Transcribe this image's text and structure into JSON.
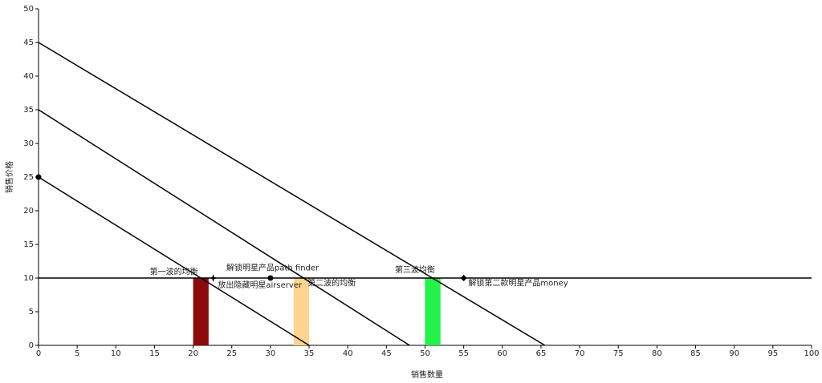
{
  "chart_data": {
    "type": "line",
    "xlabel": "销售数量",
    "ylabel": "销售价格",
    "xlim": [
      0,
      100
    ],
    "ylim": [
      0,
      50
    ],
    "xticks": [
      0,
      5,
      10,
      15,
      20,
      25,
      30,
      35,
      40,
      45,
      50,
      55,
      60,
      65,
      70,
      75,
      80,
      85,
      90,
      95,
      100
    ],
    "yticks": [
      0,
      5,
      10,
      15,
      20,
      25,
      30,
      35,
      40,
      45,
      50
    ],
    "series": [
      {
        "color": "#000000",
        "x": [
          0,
          35
        ],
        "values": [
          25,
          0
        ]
      },
      {
        "color": "#000000",
        "x": [
          0,
          48
        ],
        "values": [
          35,
          0
        ]
      },
      {
        "color": "#000000",
        "x": [
          0,
          65.5
        ],
        "values": [
          45,
          0
        ]
      },
      {
        "color": "#000000",
        "x": [
          0,
          100
        ],
        "values": [
          10,
          10
        ]
      }
    ],
    "bars": [
      {
        "x": [
          20,
          22
        ],
        "value": 10,
        "color": "#8b0a0a"
      },
      {
        "x": [
          33,
          35
        ],
        "value": 10,
        "color": "#ffd48f"
      },
      {
        "x": [
          50,
          52
        ],
        "value": 10,
        "color": "#22f24a"
      }
    ],
    "points": [
      {
        "x": 0,
        "y": 25,
        "marker": "circle"
      },
      {
        "x": 22.6,
        "y": 10,
        "marker": "star"
      },
      {
        "x": 30,
        "y": 10,
        "marker": "circle"
      },
      {
        "x": 55,
        "y": 10,
        "marker": "diamond"
      }
    ],
    "annotations": [
      {
        "text": "第一波的均衡",
        "x": 14.4,
        "y": 10.9
      },
      {
        "text": "解锁明星产品path finder",
        "x": 24.3,
        "y": 11.5
      },
      {
        "text": "放出隐藏明星airserver",
        "x": 23.2,
        "y": 8.9
      },
      {
        "text": "第二波的均衡",
        "x": 34.8,
        "y": 9.2
      },
      {
        "text": "第三波均衡",
        "x": 46.1,
        "y": 11.2
      },
      {
        "text": "解锁第二款明星产品money",
        "x": 55.6,
        "y": 9.2
      }
    ]
  }
}
